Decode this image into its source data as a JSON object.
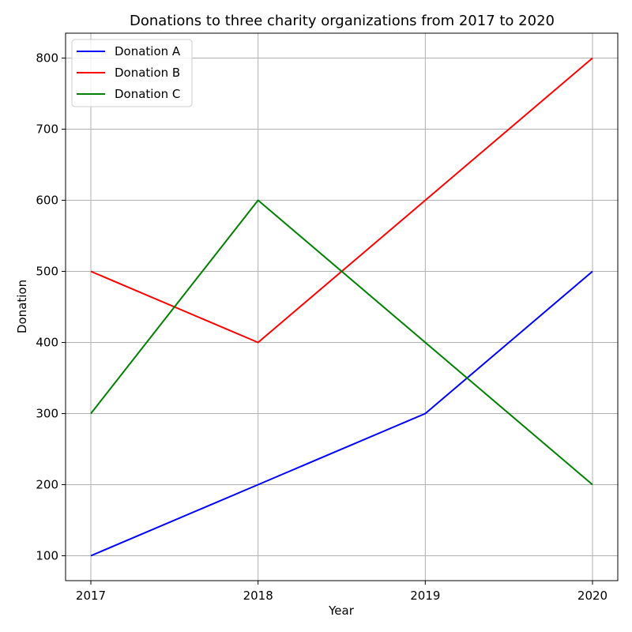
{
  "chart_data": {
    "type": "line",
    "title": "Donations to three charity organizations from 2017 to 2020",
    "xlabel": "Year",
    "ylabel": "Donation",
    "categories": [
      "2017",
      "2018",
      "2019",
      "2020"
    ],
    "y_ticks": [
      100,
      200,
      300,
      400,
      500,
      600,
      700,
      800
    ],
    "ylim": [
      65,
      835
    ],
    "grid": true,
    "legend_position": "top-left",
    "series": [
      {
        "name": "Donation A",
        "color": "#0000ff",
        "values": [
          100,
          200,
          300,
          500
        ]
      },
      {
        "name": "Donation B",
        "color": "#ff0000",
        "values": [
          500,
          400,
          600,
          800
        ]
      },
      {
        "name": "Donation C",
        "color": "#008000",
        "values": [
          300,
          600,
          400,
          200
        ]
      }
    ]
  }
}
